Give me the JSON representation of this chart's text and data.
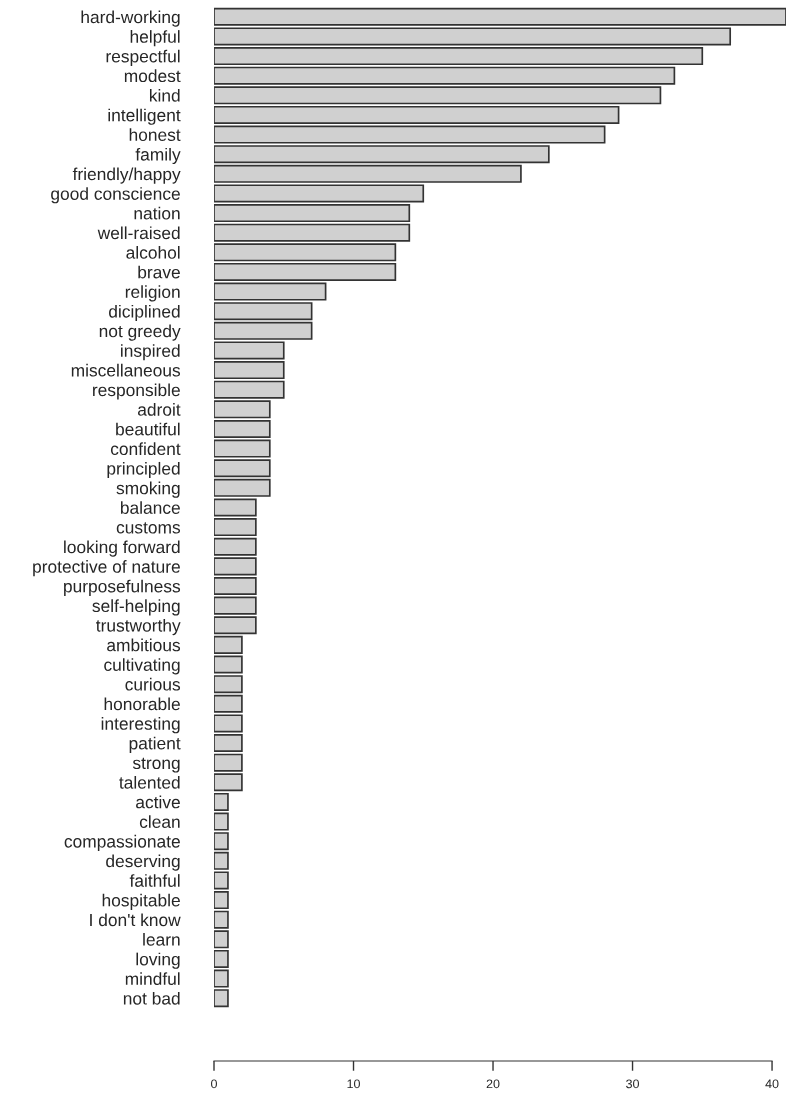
{
  "chart_data": {
    "type": "bar",
    "orientation": "horizontal",
    "categories": [
      "hard-working",
      "helpful",
      "respectful",
      "modest",
      "kind",
      "intelligent",
      "honest",
      "family",
      "friendly/happy",
      "good conscience",
      "nation",
      "well-raised",
      "alcohol",
      "brave",
      "religion",
      "diciplined",
      "not greedy",
      "inspired",
      "miscellaneous",
      "responsible",
      "adroit",
      "beautiful",
      "confident",
      "principled",
      "smoking",
      "balance",
      "customs",
      "looking forward",
      "protective of nature",
      "purposefulness",
      "self-helping",
      "trustworthy",
      "ambitious",
      "cultivating",
      "curious",
      "honorable",
      "interesting",
      "patient",
      "strong",
      "talented",
      "active",
      "clean",
      "compassionate",
      "deserving",
      "faithful",
      "hospitable",
      "I don't know",
      "learn",
      "loving",
      "mindful",
      "not bad"
    ],
    "values": [
      41,
      37,
      35,
      33,
      32,
      29,
      28,
      24,
      22,
      15,
      14,
      14,
      13,
      13,
      8,
      7,
      7,
      5,
      5,
      5,
      4,
      4,
      4,
      4,
      4,
      3,
      3,
      3,
      3,
      3,
      3,
      3,
      2,
      2,
      2,
      2,
      2,
      2,
      2,
      2,
      1,
      1,
      1,
      1,
      1,
      1,
      1,
      1,
      1,
      1,
      1
    ],
    "color": "#d0d0d0",
    "xlim": [
      0,
      41
    ],
    "xticks": [
      0,
      10,
      20,
      30,
      40
    ],
    "grid": false
  }
}
